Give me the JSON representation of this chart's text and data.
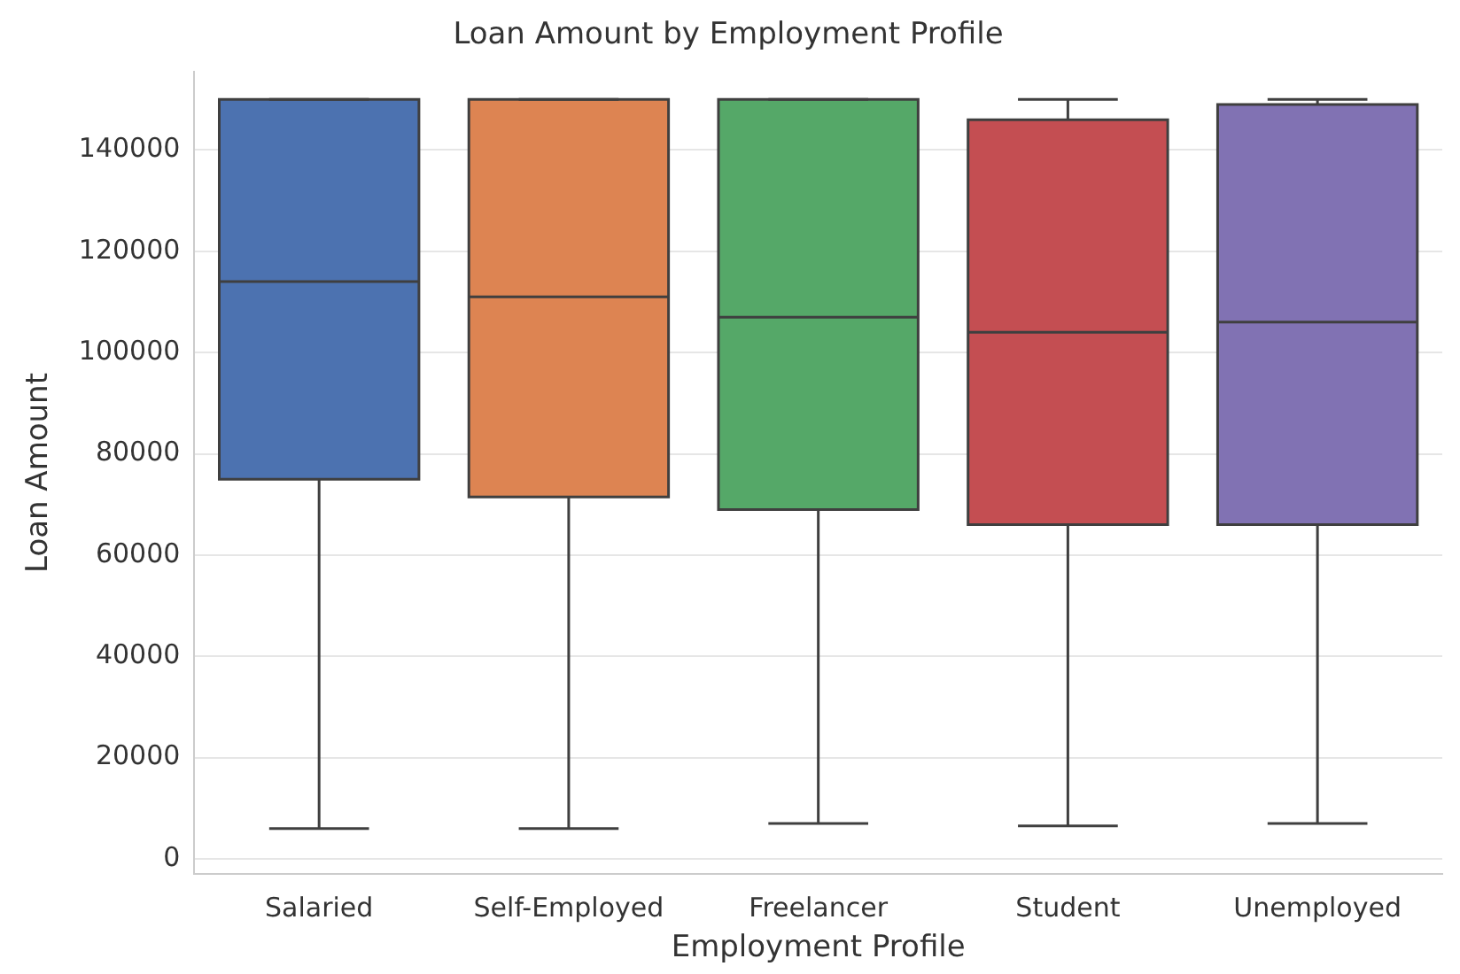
{
  "chart_data": {
    "type": "box",
    "title": "Loan Amount by Employment Profile",
    "xlabel": "Employment Profile",
    "ylabel": "Loan Amount",
    "categories": [
      "Salaried",
      "Self-Employed",
      "Freelancer",
      "Student",
      "Unemployed"
    ],
    "boxes": [
      {
        "low": 6000,
        "q1": 75000,
        "median": 114000,
        "q3": 150000,
        "high": 150000
      },
      {
        "low": 6000,
        "q1": 71500,
        "median": 111000,
        "q3": 150000,
        "high": 150000
      },
      {
        "low": 7000,
        "q1": 69000,
        "median": 107000,
        "q3": 150000,
        "high": 150000
      },
      {
        "low": 6500,
        "q1": 66000,
        "median": 104000,
        "q3": 146000,
        "high": 150000
      },
      {
        "low": 7000,
        "q1": 66000,
        "median": 106000,
        "q3": 149000,
        "high": 150000
      }
    ],
    "colors": [
      "#4c72b0",
      "#dd8452",
      "#55a868",
      "#c44e52",
      "#8172b3"
    ],
    "ylim": [
      -3000,
      155500
    ],
    "yticks": [
      0,
      20000,
      40000,
      60000,
      80000,
      100000,
      120000,
      140000
    ],
    "grid": "y"
  }
}
